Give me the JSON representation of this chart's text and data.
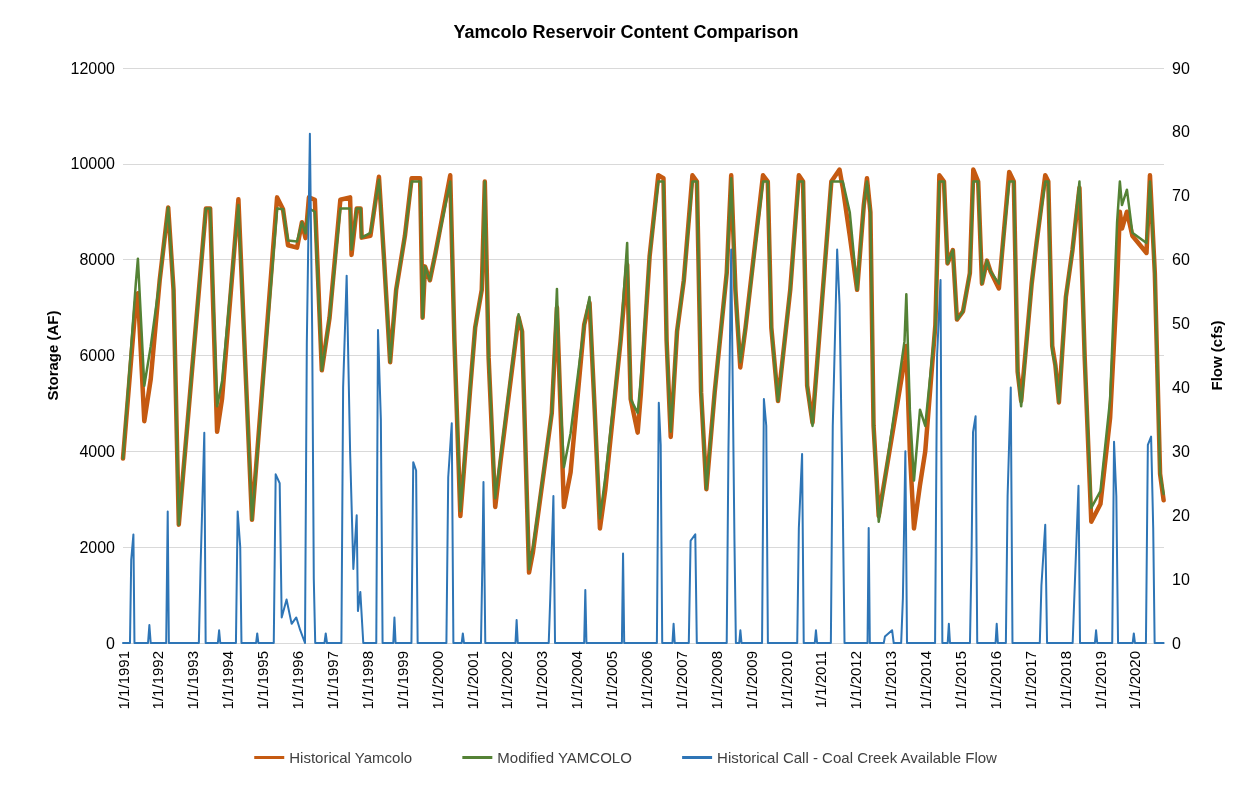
{
  "chart_data": {
    "type": "line",
    "title": "Yamcolo Reservoir Content Comparison",
    "ylabel": "Storage (AF)",
    "y2label": "Flow (cfs)",
    "x": [
      "1991-01-01",
      "1991-05-15",
      "1991-06-06",
      "1991-08-12",
      "1991-10-18",
      "1992-01-20",
      "1992-04-18",
      "1992-06-13",
      "1992-08-07",
      "1993-05-18",
      "1993-07-01",
      "1993-09-12",
      "1993-11-03",
      "1994-04-23",
      "1994-07-01",
      "1994-09-12",
      "1995-06-02",
      "1995-08-03",
      "1995-09-24",
      "1995-12-28",
      "1996-02-17",
      "1996-03-25",
      "1996-04-30",
      "1996-07-01",
      "1996-09-12",
      "1996-12-02",
      "1997-03-25",
      "1997-07-05",
      "1997-07-20",
      "1997-09-12",
      "1997-10-23",
      "1997-11-03",
      "1998-02-03",
      "1998-05-03",
      "1998-06-28",
      "1998-08-28",
      "1998-10-30",
      "1999-01-30",
      "1999-04-10",
      "1999-07-08",
      "1999-08-03",
      "1999-08-28",
      "1999-10-18",
      "1999-12-16",
      "2000-05-18",
      "2000-07-01",
      "2000-09-01",
      "2000-12-10",
      "2001-02-03",
      "2001-04-13",
      "2001-05-15",
      "2001-06-24",
      "2001-09-01",
      "2001-10-27",
      "2002-05-03",
      "2002-06-09",
      "2002-08-21",
      "2002-10-01",
      "2003-04-16",
      "2003-06-09",
      "2003-07-08",
      "2003-08-21",
      "2003-10-30",
      "2004-03-20",
      "2004-05-15",
      "2004-07-08",
      "2004-09-01",
      "2004-10-27",
      "2005-04-05",
      "2005-06-13",
      "2005-07-20",
      "2005-10-01",
      "2005-11-03",
      "2006-02-03",
      "2006-05-05",
      "2006-06-28",
      "2006-07-31",
      "2006-09-12",
      "2006-11-17",
      "2007-01-27",
      "2007-04-27",
      "2007-06-13",
      "2007-07-27",
      "2007-09-20",
      "2007-12-16",
      "2008-04-20",
      "2008-06-06",
      "2008-07-20",
      "2008-09-09",
      "2008-11-03",
      "2009-05-05",
      "2009-06-24",
      "2009-07-31",
      "2009-10-09",
      "2010-02-14",
      "2010-05-15",
      "2010-06-28",
      "2010-08-10",
      "2010-10-05",
      "2011-04-20",
      "2011-07-15",
      "2011-08-18",
      "2011-10-30",
      "2012-01-15",
      "2012-03-25",
      "2012-04-27",
      "2012-06-02",
      "2012-07-05",
      "2012-08-28",
      "2013-05-25",
      "2013-06-13",
      "2013-07-20",
      "2013-09-01",
      "2013-11-03",
      "2013-12-28",
      "2014-04-13",
      "2014-05-25",
      "2014-07-12",
      "2014-08-18",
      "2014-10-13",
      "2014-11-25",
      "2015-01-27",
      "2015-04-09",
      "2015-05-15",
      "2015-07-05",
      "2015-08-14",
      "2015-10-05",
      "2015-11-10",
      "2016-02-07",
      "2016-05-25",
      "2016-07-12",
      "2016-08-21",
      "2016-09-27",
      "2017-01-15",
      "2017-03-07",
      "2017-06-06",
      "2017-07-08",
      "2017-08-18",
      "2017-09-20",
      "2017-10-27",
      "2018-01-08",
      "2018-03-18",
      "2018-05-30",
      "2018-07-24",
      "2018-10-01",
      "2019-01-05",
      "2019-04-16",
      "2019-06-28",
      "2019-07-27",
      "2019-08-18",
      "2019-10-09",
      "2019-12-05",
      "2020-05-01",
      "2020-06-06",
      "2020-07-27",
      "2020-09-20",
      "2020-10-27"
    ],
    "series": [
      {
        "name": "Historical Yamcolo",
        "color": "#c55a11",
        "values": [
          3850,
          7100,
          7300,
          4630,
          5500,
          7570,
          9090,
          7370,
          2470,
          9070,
          9070,
          4410,
          5100,
          9260,
          5950,
          2570,
          9300,
          9050,
          8300,
          8250,
          8780,
          8450,
          9300,
          9250,
          5690,
          6790,
          9250,
          9300,
          8100,
          9070,
          9070,
          8460,
          8500,
          9730,
          7920,
          5860,
          7370,
          8500,
          9700,
          9700,
          6790,
          7860,
          7570,
          8140,
          9760,
          6300,
          2650,
          5230,
          6580,
          7370,
          9630,
          5950,
          2840,
          3800,
          6800,
          6500,
          1470,
          1900,
          4800,
          7000,
          5370,
          2840,
          3560,
          6640,
          7100,
          4870,
          2390,
          3200,
          6300,
          7900,
          5090,
          4390,
          5200,
          8070,
          9760,
          9700,
          6300,
          4300,
          6500,
          7570,
          9760,
          9630,
          5230,
          3210,
          5230,
          7720,
          9760,
          7370,
          5750,
          6580,
          9760,
          9630,
          6580,
          5050,
          7370,
          9760,
          9630,
          5370,
          4600,
          9630,
          9880,
          9500,
          8500,
          7370,
          9140,
          9700,
          8990,
          4530,
          2650,
          5900,
          6200,
          4000,
          2390,
          3300,
          4000,
          6640,
          9760,
          9630,
          7920,
          8200,
          6750,
          6920,
          7720,
          9880,
          9630,
          7500,
          7980,
          7760,
          7400,
          9830,
          9630,
          5660,
          5050,
          7500,
          8350,
          9760,
          9630,
          6200,
          5800,
          5020,
          7220,
          8200,
          9500,
          5950,
          2530,
          2900,
          4700,
          7500,
          9000,
          8650,
          9000,
          8500,
          8140,
          9760,
          7720,
          3530,
          2980
        ]
      },
      {
        "name": "Modified YAMCOLO",
        "color": "#548235",
        "values": [
          3850,
          7500,
          8020,
          5370,
          6190,
          7570,
          9090,
          7370,
          2470,
          9070,
          9070,
          4940,
          5470,
          9140,
          5950,
          2570,
          9070,
          9050,
          8400,
          8380,
          8780,
          8550,
          9070,
          9000,
          5690,
          6790,
          9070,
          9070,
          8210,
          9070,
          9070,
          8460,
          8560,
          9670,
          7920,
          5860,
          7370,
          8500,
          9630,
          9630,
          6790,
          7860,
          7570,
          8140,
          9630,
          6300,
          2750,
          5230,
          6580,
          7370,
          9630,
          5950,
          3020,
          3890,
          6860,
          6500,
          1540,
          1990,
          4800,
          7390,
          5370,
          3670,
          4380,
          6640,
          7220,
          4870,
          2600,
          3460,
          6300,
          8350,
          5090,
          4800,
          5510,
          8070,
          9630,
          9630,
          6300,
          4410,
          6500,
          7570,
          9630,
          9630,
          5230,
          3210,
          5230,
          7720,
          9700,
          7370,
          5860,
          6580,
          9630,
          9630,
          6580,
          5050,
          7370,
          9630,
          9630,
          5370,
          4530,
          9630,
          9630,
          9630,
          8990,
          7370,
          9140,
          9630,
          8990,
          4530,
          2530,
          6300,
          7280,
          4870,
          3390,
          4870,
          4530,
          6640,
          9630,
          9630,
          7920,
          8200,
          6750,
          6920,
          7720,
          9630,
          9630,
          7500,
          7980,
          7760,
          7500,
          9630,
          9630,
          5660,
          4940,
          7500,
          8350,
          9630,
          9630,
          6080,
          5800,
          5020,
          7220,
          8200,
          9630,
          5950,
          2820,
          3170,
          5080,
          8780,
          9630,
          9140,
          9460,
          8560,
          8350,
          9630,
          7720,
          3530,
          3110
        ]
      },
      {
        "name": "Historical Call - Coal Creek Available Flow",
        "color": "#2e75b6",
        "axis": "y2",
        "x": [
          "1991-01-01",
          "1991-03-15",
          "1991-03-28",
          "1991-04-20",
          "1991-05-01",
          "1991-09-20",
          "1991-10-04",
          "1991-10-18",
          "1992-03-28",
          "1992-04-13",
          "1992-04-25",
          "1993-03-05",
          "1993-03-23",
          "1993-05-01",
          "1993-05-15",
          "1993-09-20",
          "1993-10-03",
          "1993-10-15",
          "1994-03-28",
          "1994-04-15",
          "1994-05-12",
          "1994-05-25",
          "1994-10-25",
          "1994-11-06",
          "1994-11-18",
          "1995-04-28",
          "1995-05-18",
          "1995-06-29",
          "1995-07-20",
          "1995-09-09",
          "1995-11-01",
          "1995-12-20",
          "1996-01-30",
          "1996-03-20",
          "1996-04-08",
          "1996-05-10",
          "1996-06-03",
          "1996-06-20",
          "1996-07-05",
          "1996-10-10",
          "1996-10-23",
          "1996-11-05",
          "1997-04-05",
          "1997-04-23",
          "1997-05-30",
          "1997-07-05",
          "1997-08-08",
          "1997-09-12",
          "1997-09-25",
          "1997-10-20",
          "1997-11-20",
          "1998-04-05",
          "1998-04-23",
          "1998-05-23",
          "1998-06-10",
          "1998-09-30",
          "1998-10-12",
          "1998-10-24",
          "1999-04-08",
          "1999-04-27",
          "1999-05-27",
          "1999-06-12",
          "2000-04-08",
          "2000-04-27",
          "2000-06-03",
          "2000-06-20",
          "2000-09-15",
          "2000-09-27",
          "2000-10-09",
          "2001-04-05",
          "2001-04-20",
          "2001-05-01",
          "2001-05-20",
          "2002-04-01",
          "2002-04-13",
          "2002-04-25",
          "2003-03-15",
          "2003-03-31",
          "2003-05-03",
          "2003-05-20",
          "2004-03-20",
          "2004-04-01",
          "2004-04-13",
          "2005-04-19",
          "2005-05-01",
          "2005-05-13",
          "2006-04-20",
          "2006-05-10",
          "2006-05-30",
          "2006-06-15",
          "2006-09-30",
          "2006-10-12",
          "2006-10-24",
          "2007-03-20",
          "2007-04-08",
          "2007-05-27",
          "2007-06-12",
          "2008-04-20",
          "2008-05-08",
          "2008-06-06",
          "2008-07-10",
          "2008-07-25",
          "2008-08-29",
          "2008-09-10",
          "2008-09-22",
          "2009-04-25",
          "2009-05-14",
          "2009-06-08",
          "2009-06-25",
          "2010-04-28",
          "2010-05-15",
          "2010-06-18",
          "2010-07-05",
          "2010-10-29",
          "2010-11-10",
          "2010-11-22",
          "2011-04-15",
          "2011-05-05",
          "2011-06-20",
          "2011-07-15",
          "2011-08-18",
          "2011-09-05",
          "2012-05-03",
          "2012-05-15",
          "2012-05-27",
          "2012-10-20",
          "2012-11-01",
          "2013-01-15",
          "2013-02-01",
          "2013-04-20",
          "2013-05-08",
          "2013-06-03",
          "2013-06-20",
          "2014-04-10",
          "2014-05-01",
          "2014-06-06",
          "2014-06-25",
          "2014-08-20",
          "2014-09-01",
          "2014-09-13",
          "2015-04-10",
          "2015-04-27",
          "2015-05-12",
          "2015-06-08",
          "2015-06-25",
          "2016-01-03",
          "2016-01-15",
          "2016-01-27",
          "2016-04-20",
          "2016-05-08",
          "2016-06-10",
          "2016-06-28",
          "2017-04-10",
          "2017-04-27",
          "2017-06-06",
          "2017-06-25",
          "2018-03-20",
          "2018-04-06",
          "2018-05-20",
          "2018-06-05",
          "2018-11-08",
          "2018-11-20",
          "2018-12-02",
          "2019-05-08",
          "2019-05-27",
          "2019-06-20",
          "2019-07-08",
          "2019-12-08",
          "2019-12-20",
          "2020-01-01",
          "2020-04-25",
          "2020-05-15",
          "2020-06-18",
          "2020-07-10",
          "2020-07-25",
          "2020-10-27"
        ],
        "values": [
          0,
          0,
          13,
          17,
          0,
          0,
          2.8,
          0,
          0,
          20.6,
          0,
          0,
          12,
          32.9,
          0,
          0,
          2,
          0,
          0,
          20.6,
          15,
          0,
          0,
          1.5,
          0,
          0,
          26.4,
          25,
          4,
          6.8,
          3,
          4,
          2,
          0,
          47,
          79.7,
          49,
          10,
          0,
          0,
          1.5,
          0,
          0,
          40,
          57.5,
          30,
          11.6,
          20,
          5,
          8,
          0,
          0,
          49,
          35,
          0,
          0,
          4,
          0,
          0,
          28.3,
          27,
          0,
          0,
          25.9,
          34.4,
          0,
          0,
          1.5,
          0,
          0,
          13,
          25.2,
          0,
          0,
          3.6,
          0,
          0,
          7,
          23,
          0,
          0,
          8.3,
          0,
          0,
          14,
          0,
          0,
          37.6,
          31,
          0,
          0,
          3,
          0,
          0,
          16,
          17,
          0,
          0,
          30,
          61.6,
          16,
          0,
          0,
          2,
          0,
          0,
          38.2,
          34,
          0,
          0,
          18,
          29.6,
          0,
          0,
          2,
          0,
          0,
          34,
          61.6,
          53,
          21,
          0,
          0,
          18,
          0,
          0,
          1,
          2,
          0,
          0,
          7,
          30,
          0,
          0,
          45,
          56.8,
          0,
          0,
          3,
          0,
          0,
          14,
          33,
          35.5,
          0,
          0,
          3,
          0,
          0,
          23,
          40,
          0,
          0,
          9,
          18.5,
          0,
          0,
          7,
          24.6,
          0,
          0,
          2,
          0,
          0,
          31.5,
          23,
          0,
          0,
          1.5,
          0,
          0,
          31,
          32.3,
          18,
          0,
          0
        ]
      }
    ],
    "xlim": [
      "1991-01-01",
      "2020-10-31"
    ],
    "xticks": [
      {
        "value": "1991-01-01",
        "label": "1/1/1991"
      },
      {
        "value": "1992-01-01",
        "label": "1/1/1992"
      },
      {
        "value": "1993-01-01",
        "label": "1/1/1993"
      },
      {
        "value": "1994-01-01",
        "label": "1/1/1994"
      },
      {
        "value": "1995-01-01",
        "label": "1/1/1995"
      },
      {
        "value": "1996-01-01",
        "label": "1/1/1996"
      },
      {
        "value": "1997-01-01",
        "label": "1/1/1997"
      },
      {
        "value": "1998-01-01",
        "label": "1/1/1998"
      },
      {
        "value": "1999-01-01",
        "label": "1/1/1999"
      },
      {
        "value": "2000-01-01",
        "label": "1/1/2000"
      },
      {
        "value": "2001-01-01",
        "label": "1/1/2001"
      },
      {
        "value": "2002-01-01",
        "label": "1/1/2002"
      },
      {
        "value": "2003-01-01",
        "label": "1/1/2003"
      },
      {
        "value": "2004-01-01",
        "label": "1/1/2004"
      },
      {
        "value": "2005-01-01",
        "label": "1/1/2005"
      },
      {
        "value": "2006-01-01",
        "label": "1/1/2006"
      },
      {
        "value": "2007-01-01",
        "label": "1/1/2007"
      },
      {
        "value": "2008-01-01",
        "label": "1/1/2008"
      },
      {
        "value": "2009-01-01",
        "label": "1/1/2009"
      },
      {
        "value": "2010-01-01",
        "label": "1/1/2010"
      },
      {
        "value": "2011-01-01",
        "label": "1/1/2011"
      },
      {
        "value": "2012-01-01",
        "label": "1/1/2012"
      },
      {
        "value": "2013-01-01",
        "label": "1/1/2013"
      },
      {
        "value": "2014-01-01",
        "label": "1/1/2014"
      },
      {
        "value": "2015-01-01",
        "label": "1/1/2015"
      },
      {
        "value": "2016-01-01",
        "label": "1/1/2016"
      },
      {
        "value": "2017-01-01",
        "label": "1/1/2017"
      },
      {
        "value": "2018-01-01",
        "label": "1/1/2018"
      },
      {
        "value": "2019-01-01",
        "label": "1/1/2019"
      },
      {
        "value": "2020-01-01",
        "label": "1/1/2020"
      }
    ],
    "ylim": [
      0,
      12000
    ],
    "yticks": [
      0,
      2000,
      4000,
      6000,
      8000,
      10000,
      12000
    ],
    "y2lim": [
      0,
      90
    ],
    "y2ticks": [
      0,
      10,
      20,
      30,
      40,
      50,
      60,
      70,
      80,
      90
    ],
    "grid": "y",
    "legend": "bottom",
    "marker": "none",
    "line_style": "solid"
  }
}
